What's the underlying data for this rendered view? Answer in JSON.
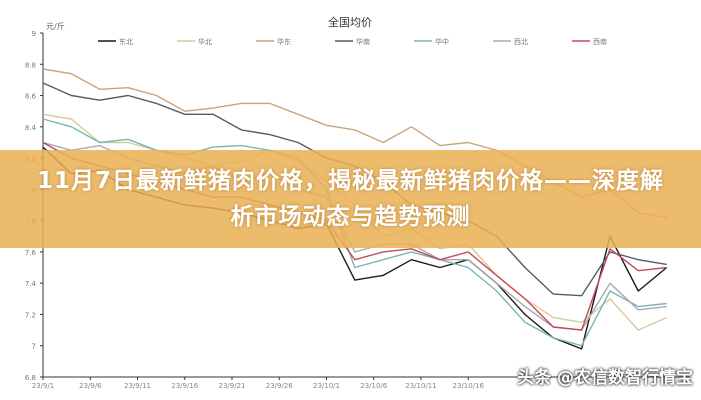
{
  "chart_data": {
    "type": "line",
    "title": "全国均价",
    "ylabel": "元/斤",
    "ylim": [
      6.8,
      9
    ],
    "yticks": [
      "9",
      "8.8",
      "8.6",
      "8.4",
      "8.2",
      "8",
      "7.8",
      "7.6",
      "7.4",
      "7.2",
      "7",
      "6.8"
    ],
    "xtick_labels": [
      "23/9/1",
      "23/9/6",
      "23/9/11",
      "23/9/16",
      "23/9/21",
      "23/9/26",
      "23/10/1",
      "23/10/6",
      "23/10/11",
      "23/10/16"
    ],
    "legend_position": "top",
    "grid": false,
    "x": [
      "23/9/1",
      "23/9/4",
      "23/9/7",
      "23/9/10",
      "23/9/13",
      "23/9/16",
      "23/9/19",
      "23/9/22",
      "23/9/25",
      "23/9/28",
      "23/10/1",
      "23/10/4",
      "23/10/7",
      "23/10/10",
      "23/10/13",
      "23/10/16",
      "23/10/19",
      "23/10/22",
      "23/10/25",
      "23/10/28",
      "23/10/31",
      "23/11/3",
      "23/11/6"
    ],
    "series": [
      {
        "name": "东北",
        "color": "#1a1a1a",
        "values": [
          8.27,
          8.1,
          8.12,
          8.0,
          7.95,
          7.9,
          7.88,
          7.85,
          7.8,
          7.75,
          7.78,
          7.42,
          7.45,
          7.55,
          7.5,
          7.55,
          7.4,
          7.2,
          7.05,
          6.98,
          7.7,
          7.35,
          7.5
        ]
      },
      {
        "name": "华北",
        "color": "#d6cc98",
        "values": [
          8.48,
          8.45,
          8.3,
          8.3,
          8.25,
          8.2,
          8.15,
          8.18,
          8.25,
          8.18,
          8.05,
          7.9,
          7.7,
          7.75,
          7.62,
          7.65,
          7.45,
          7.3,
          7.18,
          7.15,
          7.3,
          7.1,
          7.18
        ]
      },
      {
        "name": "华东",
        "color": "#c9a47c",
        "values": [
          8.77,
          8.74,
          8.64,
          8.65,
          8.6,
          8.5,
          8.52,
          8.55,
          8.55,
          8.48,
          8.41,
          8.38,
          8.3,
          8.4,
          8.28,
          8.3,
          8.25,
          8.15,
          8.05,
          7.95,
          8.0,
          7.85,
          7.82
        ]
      },
      {
        "name": "华南",
        "color": "#555a6b",
        "values": [
          8.68,
          8.6,
          8.57,
          8.6,
          8.55,
          8.48,
          8.48,
          8.38,
          8.35,
          8.3,
          8.2,
          8.15,
          8.05,
          7.9,
          7.85,
          7.8,
          7.7,
          7.5,
          7.33,
          7.32,
          7.6,
          7.55,
          7.52
        ]
      },
      {
        "name": "华中",
        "color": "#78b7b4",
        "values": [
          8.45,
          8.4,
          8.3,
          8.32,
          8.25,
          8.22,
          8.27,
          8.28,
          8.25,
          8.2,
          8.0,
          7.5,
          7.55,
          7.6,
          7.55,
          7.5,
          7.35,
          7.15,
          7.05,
          7.0,
          7.35,
          7.25,
          7.27
        ]
      },
      {
        "name": "西北",
        "color": "#a9a9b0",
        "values": [
          8.3,
          8.25,
          8.28,
          8.2,
          8.15,
          8.1,
          8.15,
          8.05,
          8.1,
          8.0,
          7.95,
          7.6,
          7.65,
          7.65,
          7.55,
          7.55,
          7.4,
          7.25,
          7.12,
          7.1,
          7.4,
          7.23,
          7.25
        ]
      },
      {
        "name": "西南",
        "color": "#c44b5a",
        "values": [
          8.3,
          8.2,
          8.15,
          8.1,
          8.05,
          8.0,
          7.95,
          7.95,
          7.9,
          7.85,
          7.8,
          7.55,
          7.6,
          7.62,
          7.55,
          7.6,
          7.45,
          7.3,
          7.12,
          7.1,
          7.62,
          7.48,
          7.5
        ]
      }
    ]
  },
  "banner": {
    "headline": "11月7日最新鲜猪肉价格，揭秘最新鲜猪肉价格——深度解析市场动态与趋势预测",
    "color": "#eab054"
  },
  "watermark": "头条 @农信数智行情宝"
}
